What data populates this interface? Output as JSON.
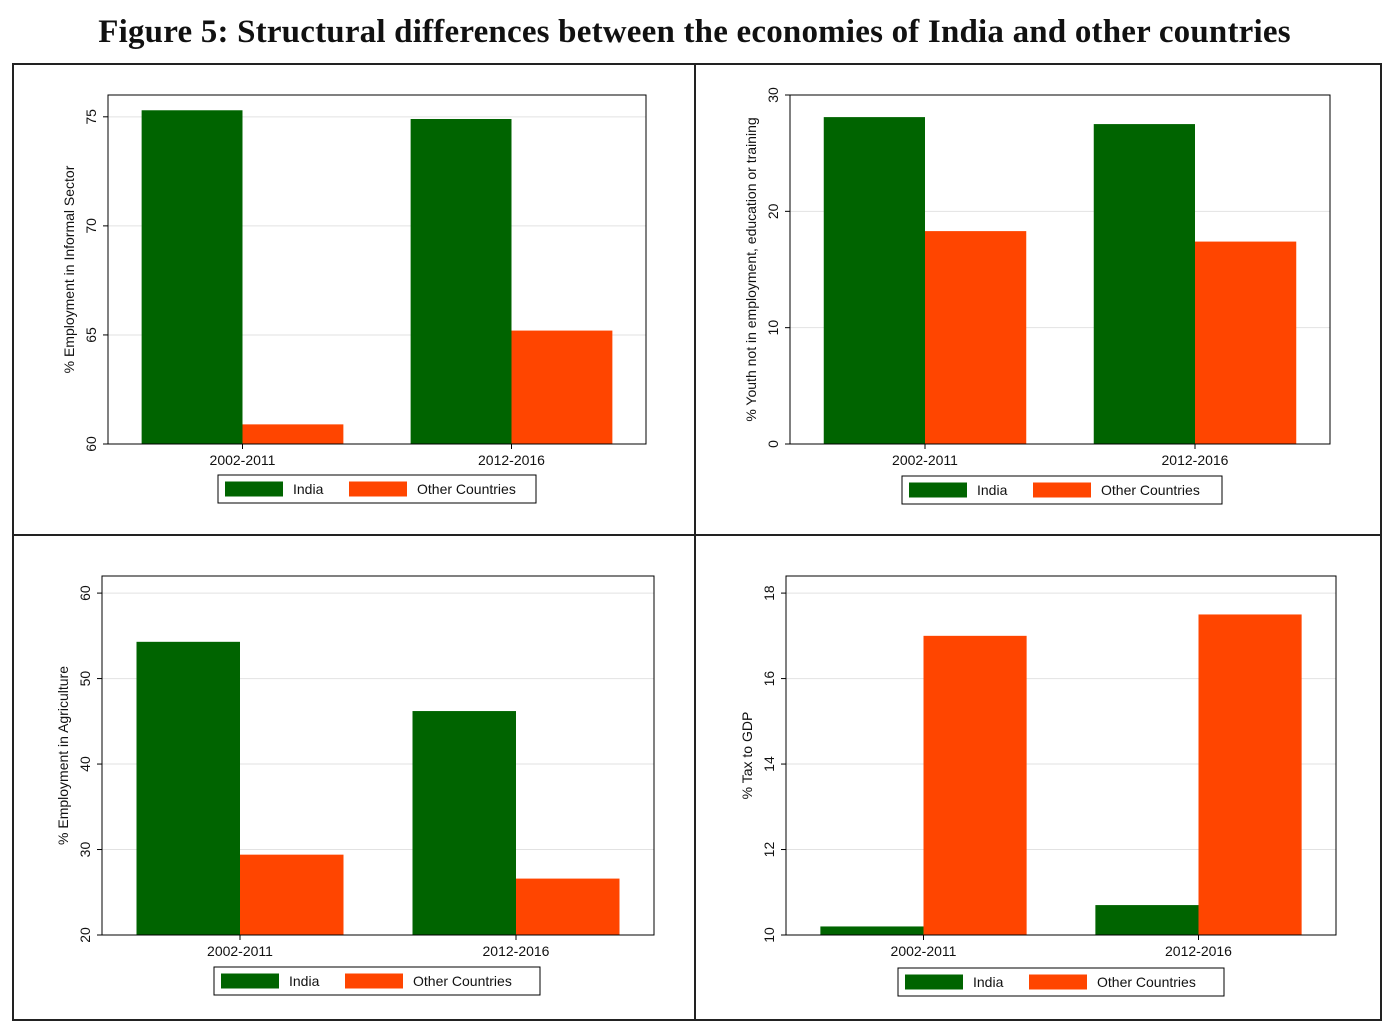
{
  "title": "Figure 5: Structural differences between the economies of India and other countries",
  "colors": {
    "india": "#006400",
    "other": "#FF4500",
    "grid": "#e2e2e2",
    "axis": "#000000"
  },
  "chart_data": [
    {
      "type": "bar",
      "position": "top-left",
      "categories": [
        "2002-2011",
        "2012-2016"
      ],
      "series": [
        {
          "name": "India",
          "values": [
            75.3,
            74.9
          ]
        },
        {
          "name": "Other Countries",
          "values": [
            60.9,
            65.2
          ]
        }
      ],
      "ylabel": "% Employment in Informal Sector",
      "ylim": [
        60,
        76
      ],
      "yticks": [
        60,
        65,
        70,
        75
      ],
      "legend": [
        "India",
        "Other Countries"
      ]
    },
    {
      "type": "bar",
      "position": "top-right",
      "categories": [
        "2002-2011",
        "2012-2016"
      ],
      "series": [
        {
          "name": "India",
          "values": [
            28.1,
            27.5
          ]
        },
        {
          "name": "Other Countries",
          "values": [
            18.3,
            17.4
          ]
        }
      ],
      "ylabel": "% Youth not in employment, education or training",
      "ylim": [
        0,
        30
      ],
      "yticks": [
        0,
        10,
        20,
        30
      ],
      "legend": [
        "India",
        "Other Countries"
      ]
    },
    {
      "type": "bar",
      "position": "bottom-left",
      "categories": [
        "2002-2011",
        "2012-2016"
      ],
      "series": [
        {
          "name": "India",
          "values": [
            54.3,
            46.2
          ]
        },
        {
          "name": "Other Countries",
          "values": [
            29.4,
            26.6
          ]
        }
      ],
      "ylabel": "% Employment in Agriculture",
      "ylim": [
        20,
        62
      ],
      "yticks": [
        20,
        30,
        40,
        50,
        60
      ],
      "legend": [
        "India",
        "Other Countries"
      ]
    },
    {
      "type": "bar",
      "position": "bottom-right",
      "categories": [
        "2002-2011",
        "2012-2016"
      ],
      "series": [
        {
          "name": "India",
          "values": [
            10.2,
            10.7
          ]
        },
        {
          "name": "Other Countries",
          "values": [
            17.0,
            17.5
          ]
        }
      ],
      "ylabel": "% Tax to GDP",
      "ylim": [
        10,
        18.4
      ],
      "yticks": [
        10,
        12,
        14,
        16,
        18
      ],
      "legend": [
        "India",
        "Other Countries"
      ]
    }
  ]
}
